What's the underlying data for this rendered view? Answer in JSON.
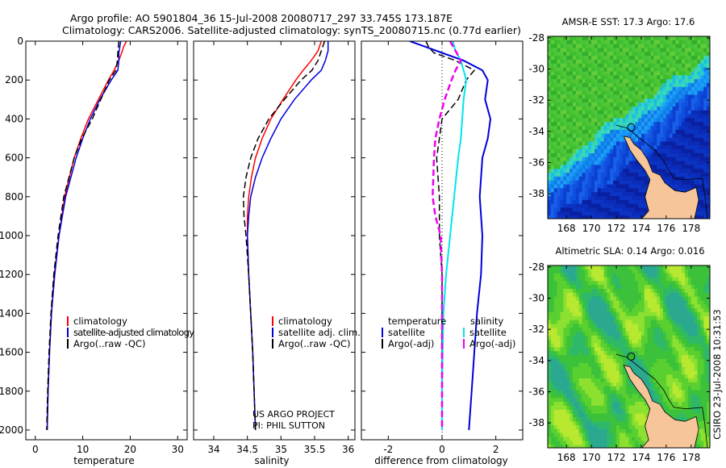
{
  "title_line1": "Argo profile: AO 5901804_36 15-Jul-2008 20080717_297 33.745S 173.187E",
  "title_line2": "Climatology: CARS2006. Satellite-adjusted climatology: synTS_20080715.nc (0.77d earlier)",
  "side_stamp": "CSIRO 23-Jul-2008 10:31:53",
  "credit_line1": "US ARGO PROJECT",
  "credit_line2": "PI: PHIL SUTTON",
  "colors": {
    "red": "#ff0000",
    "blue": "#0000dd",
    "black": "#000000",
    "cyan": "#00e5ee",
    "magenta": "#ee00ee",
    "land": "#f6c59a"
  },
  "chart_data": [
    {
      "type": "line",
      "xlabel": "temperature",
      "xlim": [
        -2,
        32
      ],
      "ylim": [
        0,
        2050
      ],
      "xticks": [
        "0",
        "10",
        "20",
        "30"
      ],
      "xtick_values": [
        0,
        10,
        20,
        30
      ],
      "yticks": [
        "0",
        "200",
        "400",
        "600",
        "800",
        "1000",
        "1200",
        "1400",
        "1600",
        "1800",
        "2000"
      ],
      "ytick_values": [
        0,
        200,
        400,
        600,
        800,
        1000,
        1200,
        1400,
        1600,
        1800,
        2000
      ],
      "legend": [
        "climatology",
        "satellite-adjusted climatology",
        "Argo(..raw -QC)"
      ],
      "series": [
        {
          "name": "climatology",
          "color": "red",
          "dash": "",
          "depth": [
            0,
            30,
            60,
            100,
            150,
            200,
            300,
            400,
            500,
            600,
            800,
            1000,
            1200,
            1400,
            1600,
            1800,
            2000
          ],
          "values": [
            19.2,
            18.6,
            18.2,
            17.6,
            16.6,
            15.4,
            13.3,
            11.2,
            9.6,
            8.2,
            6.2,
            5.0,
            4.0,
            3.4,
            3.0,
            2.7,
            2.5
          ]
        },
        {
          "name": "satellite-adjusted climatology",
          "color": "blue",
          "dash": "",
          "depth": [
            0,
            30,
            60,
            100,
            150,
            200,
            300,
            400,
            500,
            600,
            800,
            1000,
            1200,
            1400,
            1600,
            1800,
            2000
          ],
          "values": [
            18.0,
            17.8,
            17.6,
            17.6,
            17.4,
            16.0,
            13.6,
            11.6,
            10.0,
            8.6,
            6.4,
            5.0,
            4.1,
            3.4,
            3.0,
            2.7,
            2.5
          ]
        },
        {
          "name": "Argo(..raw -QC)",
          "color": "black",
          "dash": "8,4",
          "depth": [
            0,
            30,
            60,
            100,
            150,
            200,
            300,
            400,
            500,
            600,
            800,
            1000,
            1200,
            1400,
            1600,
            1800,
            2000
          ],
          "values": [
            17.6,
            17.5,
            17.4,
            17.3,
            17.0,
            15.6,
            13.8,
            12.0,
            9.8,
            8.2,
            6.0,
            4.8,
            3.9,
            3.3,
            2.9,
            2.6,
            2.4
          ]
        }
      ]
    },
    {
      "type": "line",
      "xlabel": "salinity",
      "xlim": [
        33.7,
        36.1
      ],
      "ylim": [
        0,
        2050
      ],
      "xticks": [
        "34",
        "34.5",
        "35",
        "35.5",
        "36"
      ],
      "xtick_values": [
        34,
        34.5,
        35,
        35.5,
        36
      ],
      "legend": [
        "climatology",
        "satellite adj. clim.",
        "Argo(..raw -QC)"
      ],
      "series": [
        {
          "name": "climatology",
          "color": "red",
          "dash": "",
          "depth": [
            0,
            50,
            100,
            150,
            200,
            300,
            400,
            500,
            600,
            700,
            800,
            900,
            1000,
            1200,
            1400,
            1600,
            1800,
            2000
          ],
          "values": [
            35.6,
            35.55,
            35.45,
            35.33,
            35.22,
            35.03,
            34.85,
            34.72,
            34.62,
            34.56,
            34.52,
            34.5,
            34.5,
            34.52,
            34.55,
            34.58,
            34.6,
            34.62
          ]
        },
        {
          "name": "satellite adj. clim.",
          "color": "blue",
          "dash": "",
          "depth": [
            0,
            50,
            100,
            150,
            200,
            300,
            400,
            500,
            600,
            700,
            800,
            900,
            1000,
            1200,
            1400,
            1600,
            1800,
            2000
          ],
          "values": [
            35.7,
            35.7,
            35.66,
            35.6,
            35.45,
            35.2,
            35.0,
            34.85,
            34.72,
            34.62,
            34.55,
            34.52,
            34.5,
            34.52,
            34.55,
            34.58,
            34.6,
            34.62
          ]
        },
        {
          "name": "Argo(..raw -QC)",
          "color": "black",
          "dash": "8,4",
          "depth": [
            0,
            50,
            100,
            150,
            200,
            300,
            400,
            500,
            600,
            700,
            800,
            900,
            1000,
            1200,
            1400,
            1600,
            1800,
            2000
          ],
          "values": [
            35.65,
            35.6,
            35.55,
            35.46,
            35.3,
            35.05,
            34.82,
            34.66,
            34.55,
            34.48,
            34.44,
            34.45,
            34.48,
            34.52,
            34.55,
            34.58,
            34.6,
            34.62
          ]
        }
      ]
    },
    {
      "type": "line",
      "xlabel": "difference from climatology",
      "xlim": [
        -3,
        3
      ],
      "ylim": [
        0,
        2050
      ],
      "xticks": [
        "-2",
        "0",
        "2"
      ],
      "xtick_values": [
        -2,
        0,
        2
      ],
      "legend_titles": [
        "temperature",
        "salinity"
      ],
      "legend": [
        "satellite",
        "Argo(-adj)",
        "satellite",
        "Argo(-adj)"
      ],
      "series": [
        {
          "name": "satellite",
          "group": "temperature",
          "color": "blue",
          "dash": "",
          "width": 2,
          "depth": [
            0,
            30,
            60,
            100,
            150,
            200,
            300,
            400,
            500,
            600,
            800,
            1000,
            1200,
            1400,
            1600,
            1800,
            2000
          ],
          "values": [
            -1.2,
            -0.6,
            0.0,
            0.8,
            1.5,
            1.7,
            1.6,
            1.8,
            1.7,
            1.5,
            1.4,
            1.5,
            1.45,
            1.3,
            1.2,
            1.1,
            1.0
          ]
        },
        {
          "name": "Argo(-adj)",
          "group": "temperature",
          "color": "black",
          "dash": "8,4",
          "width": 1.5,
          "depth": [
            0,
            30,
            60,
            100,
            150,
            200,
            300,
            400,
            500,
            600,
            800,
            1000,
            1200,
            1400,
            1600,
            1800,
            2000
          ],
          "values": [
            -0.6,
            -0.5,
            -0.3,
            0.5,
            1.2,
            0.9,
            0.6,
            0.0,
            -0.1,
            -0.2,
            -0.1,
            -0.1,
            0.0,
            0.0,
            0.0,
            0.0,
            0.0
          ]
        },
        {
          "name": "satellite",
          "group": "salinity",
          "color": "cyan",
          "dash": "",
          "width": 2,
          "depth": [
            0,
            50,
            100,
            150,
            200,
            300,
            400,
            500,
            600,
            800,
            1000,
            1200,
            1400,
            1600,
            1800,
            2000
          ],
          "values": [
            0.4,
            0.5,
            0.7,
            0.8,
            0.9,
            0.8,
            0.75,
            0.7,
            0.6,
            0.45,
            0.3,
            0.15,
            0.05,
            0.02,
            0.0,
            0.0
          ]
        },
        {
          "name": "Argo(-adj)",
          "group": "salinity",
          "color": "magenta",
          "dash": "8,4",
          "width": 2.5,
          "depth": [
            0,
            50,
            100,
            150,
            200,
            300,
            400,
            500,
            600,
            800,
            900,
            1000,
            1200,
            1400,
            1600,
            1800,
            2000
          ],
          "values": [
            0.3,
            0.5,
            0.7,
            0.5,
            0.35,
            0.1,
            -0.1,
            -0.25,
            -0.3,
            -0.35,
            -0.25,
            -0.05,
            0.0,
            0.0,
            0.0,
            0.0,
            0.0
          ]
        }
      ]
    },
    {
      "type": "heatmap",
      "title": "AMSR-E SST: 17.3 Argo: 17.6",
      "xlim": [
        166.5,
        179.5
      ],
      "ylim": [
        -39.6,
        -27.9
      ],
      "xticks": [
        "168",
        "170",
        "172",
        "174",
        "176",
        "178"
      ],
      "xtick_values": [
        168,
        170,
        172,
        174,
        176,
        178
      ],
      "yticks": [
        "-28",
        "-30",
        "-32",
        "-34",
        "-36",
        "-38"
      ],
      "ytick_values": [
        -28,
        -30,
        -32,
        -34,
        -36,
        -38
      ],
      "marker": {
        "lon": 173.187,
        "lat": -33.745
      }
    },
    {
      "type": "heatmap",
      "title": "Altimetric SLA: 0.14 Argo: 0.016",
      "xlim": [
        166.5,
        179.5
      ],
      "ylim": [
        -39.6,
        -27.9
      ],
      "xticks": [
        "168",
        "170",
        "172",
        "174",
        "176",
        "178"
      ],
      "xtick_values": [
        168,
        170,
        172,
        174,
        176,
        178
      ],
      "yticks": [
        "-28",
        "-30",
        "-32",
        "-34",
        "-36",
        "-38"
      ],
      "ytick_values": [
        -28,
        -30,
        -32,
        -34,
        -36,
        -38
      ],
      "marker": {
        "lon": 173.187,
        "lat": -33.745
      }
    }
  ]
}
